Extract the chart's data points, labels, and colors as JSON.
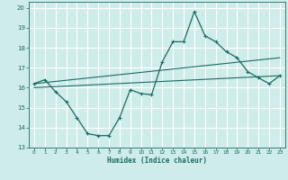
{
  "xlabel": "Humidex (Indice chaleur)",
  "bg_color": "#ceecea",
  "grid_color": "#ffffff",
  "line_color": "#1a6b62",
  "xlim": [
    -0.5,
    23.5
  ],
  "ylim": [
    13,
    20.3
  ],
  "xticks": [
    0,
    1,
    2,
    3,
    4,
    5,
    6,
    7,
    8,
    9,
    10,
    11,
    12,
    13,
    14,
    15,
    16,
    17,
    18,
    19,
    20,
    21,
    22,
    23
  ],
  "yticks": [
    13,
    14,
    15,
    16,
    17,
    18,
    19,
    20
  ],
  "line1_x": [
    0,
    1,
    2,
    3,
    4,
    5,
    6,
    7,
    8,
    9,
    10,
    11,
    12,
    13,
    14,
    15,
    16,
    17,
    18,
    19,
    20,
    21,
    22,
    23
  ],
  "line1_y": [
    16.2,
    16.4,
    15.8,
    15.3,
    14.5,
    13.7,
    13.6,
    13.6,
    14.5,
    15.9,
    15.7,
    15.65,
    17.3,
    18.3,
    18.3,
    19.8,
    18.6,
    18.3,
    17.8,
    17.5,
    16.8,
    16.5,
    16.2,
    16.6
  ],
  "line2_x": [
    0,
    23
  ],
  "line2_y": [
    16.2,
    17.5
  ],
  "line3_x": [
    0,
    23
  ],
  "line3_y": [
    16.0,
    16.6
  ]
}
